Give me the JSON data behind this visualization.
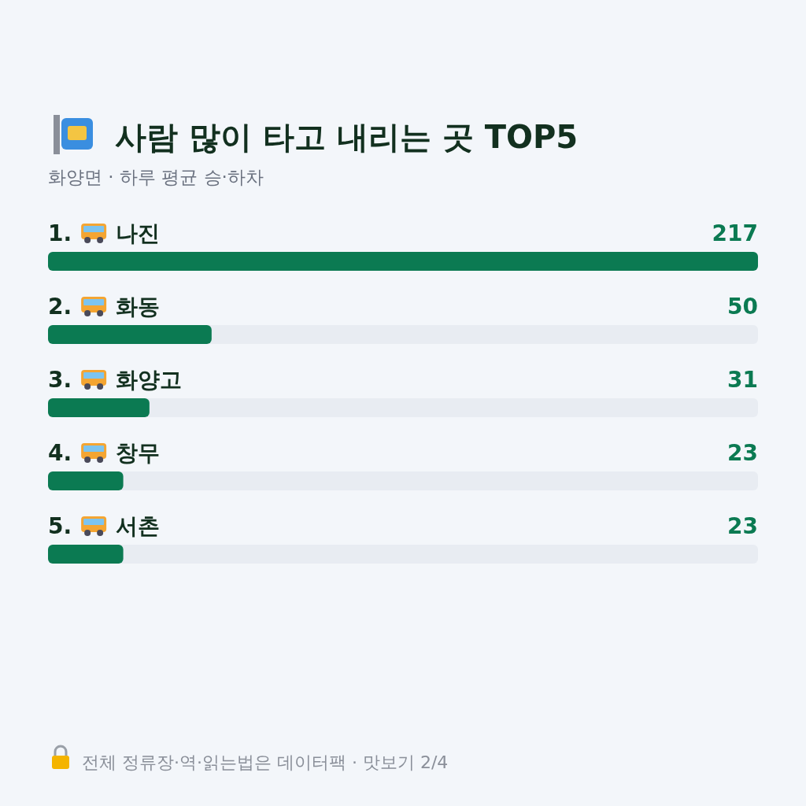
{
  "chart_data": {
    "type": "bar",
    "orientation": "horizontal",
    "title": "사람 많이 타고 내리는 곳 TOP5",
    "subtitle": "화양면 · 하루 평균 승·하차",
    "categories": [
      "1. 나진",
      "2. 화동",
      "3. 화양고",
      "4. 창무",
      "5. 서촌"
    ],
    "values": [
      217,
      50,
      31,
      23,
      23
    ],
    "color": "#0b7a52",
    "data_labels": true,
    "annotations": [
      "전체 정류장·역·읽는법은 데이터팩 · 맛보기 2/4"
    ]
  }
}
